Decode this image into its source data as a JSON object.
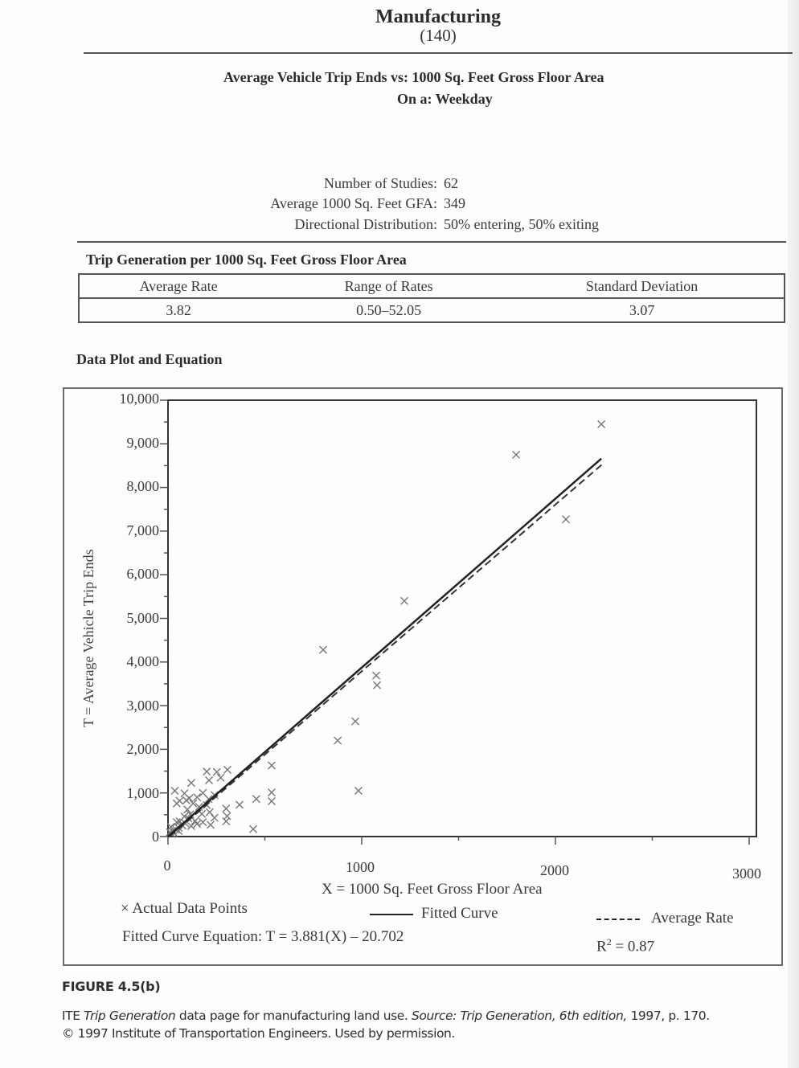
{
  "header": {
    "title": "Manufacturing",
    "code": "(140)",
    "line1": "Average Vehicle Trip Ends vs:  1000 Sq. Feet Gross Floor Area",
    "line2": "On a:  Weekday"
  },
  "stats": {
    "studies_label": "Number of Studies:",
    "studies_value": "62",
    "avg_gfa_label": "Average 1000 Sq. Feet GFA:",
    "avg_gfa_value": "349",
    "direction_label": "Directional Distribution:",
    "direction_value": "50% entering, 50% exiting"
  },
  "trip_generation": {
    "title": "Trip Generation per 1000 Sq. Feet Gross Floor Area",
    "columns": [
      "Average Rate",
      "Range of Rates",
      "Standard Deviation"
    ],
    "values": [
      "3.82",
      "0.50–52.05",
      "3.07"
    ]
  },
  "plot_section": {
    "title": "Data Plot and Equation"
  },
  "legend": {
    "points_symbol": "×",
    "points_label": "Actual Data Points",
    "fitted_label": "Fitted Curve",
    "average_label": "Average Rate",
    "equation": "Fitted Curve Equation:  T = 3.881(X) – 20.702",
    "r2_prefix": "R",
    "r2_sup": "2",
    "r2_value": " = 0.87"
  },
  "caption": {
    "figure": "FIGURE 4.5(b)",
    "line1_a": "ITE ",
    "line1_b": "Trip Generation",
    "line1_c": " data page for manufacturing land use. ",
    "line1_d": "Source: Trip Generation, 6th edition,",
    "line1_e": " 1997, p. 170.",
    "line2": "© 1997 Institute of Transportation Engineers. Used by permission."
  },
  "chart_data": {
    "type": "scatter",
    "title": "Average Vehicle Trip Ends vs: 1000 Sq. Feet Gross Floor Area — Weekday",
    "xlabel": "X = 1000 Sq. Feet Gross Floor Area",
    "ylabel": "T = Average Vehicle Trip Ends",
    "xlim": [
      0,
      3000
    ],
    "ylim": [
      0,
      10000
    ],
    "x_ticks": [
      "0",
      "1000",
      "2000",
      "3000"
    ],
    "y_ticks": [
      "0",
      "1,000",
      "2,000",
      "3,000",
      "4,000",
      "5,000",
      "6,000",
      "7,000",
      "8,000",
      "9,000",
      "10,000"
    ],
    "grid": false,
    "legend": [
      "Actual Data Points",
      "Fitted Curve",
      "Average Rate"
    ],
    "series": [
      {
        "name": "Actual Data Points",
        "marker": "x",
        "points": [
          [
            2237,
            9450
          ],
          [
            1797,
            8750
          ],
          [
            2054,
            7270
          ],
          [
            1220,
            5400
          ],
          [
            801,
            4280
          ],
          [
            1075,
            3690
          ],
          [
            1079,
            3470
          ],
          [
            967,
            2640
          ],
          [
            876,
            2200
          ],
          [
            983,
            1050
          ],
          [
            535,
            1630
          ],
          [
            535,
            1010
          ],
          [
            535,
            810
          ],
          [
            456,
            860
          ],
          [
            369,
            730
          ],
          [
            440,
            170
          ],
          [
            307,
            1530
          ],
          [
            252,
            1480
          ],
          [
            272,
            1350
          ],
          [
            200,
            1490
          ],
          [
            212,
            1290
          ],
          [
            120,
            1230
          ],
          [
            35,
            1050
          ],
          [
            85,
            990
          ],
          [
            180,
            1000
          ],
          [
            150,
            900
          ],
          [
            95,
            830
          ],
          [
            60,
            820
          ],
          [
            210,
            860
          ],
          [
            130,
            760
          ],
          [
            45,
            760
          ],
          [
            300,
            640
          ],
          [
            305,
            470
          ],
          [
            300,
            350
          ],
          [
            215,
            560
          ],
          [
            175,
            520
          ],
          [
            240,
            430
          ],
          [
            115,
            510
          ],
          [
            105,
            420
          ],
          [
            85,
            460
          ],
          [
            180,
            330
          ],
          [
            150,
            290
          ],
          [
            220,
            270
          ],
          [
            90,
            300
          ],
          [
            75,
            250
          ],
          [
            55,
            200
          ],
          [
            40,
            160
          ],
          [
            25,
            130
          ],
          [
            15,
            220
          ],
          [
            10,
            100
          ],
          [
            30,
            80
          ],
          [
            55,
            130
          ],
          [
            120,
            240
          ],
          [
            140,
            360
          ],
          [
            60,
            350
          ],
          [
            100,
            620
          ],
          [
            160,
            680
          ],
          [
            240,
            950
          ],
          [
            110,
            880
          ],
          [
            20,
            60
          ],
          [
            45,
            330
          ],
          [
            200,
            720
          ]
        ]
      },
      {
        "name": "Fitted Curve",
        "style": "solid",
        "equation": "T = 3.881(X) - 20.702",
        "x": [
          0,
          2237
        ],
        "y": [
          -20.702,
          8661
        ]
      },
      {
        "name": "Average Rate",
        "style": "dashed",
        "equation": "T = 3.82(X)",
        "x": [
          0,
          2237
        ],
        "y": [
          0,
          8545
        ]
      }
    ],
    "annotations": [
      "Fitted Curve Equation: T = 3.881(X) – 20.702",
      "R² = 0.87"
    ],
    "r_squared": 0.87
  }
}
